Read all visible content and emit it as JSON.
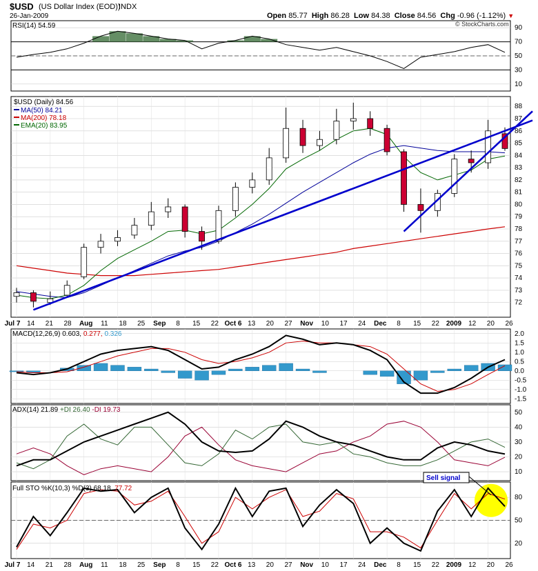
{
  "header": {
    "symbol": "$USD",
    "name": "(US Dollar Index (EOD))",
    "exchange": "INDX",
    "date": "26-Jan-2009",
    "open_label": "Open",
    "open": "85.77",
    "high_label": "High",
    "high": "86.28",
    "low_label": "Low",
    "low": "84.38",
    "close_label": "Close",
    "close": "84.56",
    "chg_label": "Chg",
    "chg": "-0.96 (-1.12%)",
    "watermark": "© StockCharts.com"
  },
  "colors": {
    "up": "#ffffff",
    "down": "#cc0033",
    "trend": "#0000cc",
    "ma50": "#000099",
    "ma200": "#cc0000",
    "ema20": "#006600",
    "macd_hist": "#3399cc",
    "rsi_fill": "#4a7a4a",
    "rsi_fill_low": "#7a4a4a",
    "grid": "#cccccc",
    "highlight": "#ffff00"
  },
  "chart_data": {
    "type": "candlestick",
    "dates": [
      "Jul 7",
      "Jul 14",
      "Jul 21",
      "Jul 28",
      "Aug 4",
      "Aug 11",
      "Aug 18",
      "Aug 25",
      "Sep 1",
      "Sep 8",
      "Sep 15",
      "Sep 22",
      "Sep 29",
      "Oct 6",
      "Oct 13",
      "Oct 20",
      "Oct 27",
      "Nov 3",
      "Nov 10",
      "Nov 17",
      "Nov 24",
      "Dec 1",
      "Dec 8",
      "Dec 15",
      "Dec 22",
      "Dec 29",
      "Jan 5",
      "Jan 12",
      "Jan 20",
      "Jan 26"
    ],
    "xaxis": {
      "ticks": [
        "Jul 7",
        "14",
        "21",
        "28",
        "Aug",
        "11",
        "18",
        "25",
        "Sep",
        "8",
        "15",
        "22",
        "Oct 6",
        "13",
        "20",
        "27",
        "Nov",
        "10",
        "17",
        "24",
        "Dec",
        "8",
        "15",
        "22",
        "2009",
        "12",
        "20",
        "26"
      ],
      "bold": [
        "Jul 7",
        "Aug",
        "Sep",
        "Oct 6",
        "Nov",
        "Dec",
        "2009"
      ]
    },
    "rsi": {
      "title": "RSI(14) 54.59",
      "ylim": [
        0,
        100
      ],
      "ticks": [
        "90",
        "70",
        "50",
        "30",
        "10"
      ],
      "tick_values": [
        90,
        70,
        50,
        30,
        10
      ],
      "values": [
        48,
        52,
        55,
        60,
        68,
        78,
        85,
        82,
        78,
        74,
        72,
        60,
        68,
        72,
        78,
        74,
        66,
        62,
        58,
        62,
        56,
        50,
        42,
        32,
        48,
        52,
        56,
        62,
        66,
        55
      ]
    },
    "price": {
      "title": "$USD (Daily) 84.56",
      "legend": [
        "MA(50) 84.21",
        "MA(200) 78.18",
        "EMA(20) 83.95"
      ],
      "ylim": [
        70.8,
        88.8
      ],
      "ticks": [
        "88",
        "87",
        "86",
        "85",
        "84",
        "83",
        "82",
        "81",
        "80",
        "79",
        "78",
        "77",
        "76",
        "75",
        "74",
        "73",
        "72"
      ],
      "tick_values": [
        88,
        87,
        86,
        85,
        84,
        83,
        82,
        81,
        80,
        79,
        78,
        77,
        76,
        75,
        74,
        73,
        72
      ],
      "close": [
        72.8,
        72.1,
        72.3,
        73.4,
        76.5,
        77.0,
        77.3,
        78.3,
        79.4,
        79.8,
        77.8,
        77.0,
        79.5,
        81.4,
        82.0,
        83.8,
        86.2,
        84.8,
        85.3,
        86.8,
        87.0,
        86.2,
        84.3,
        80.0,
        79.5,
        80.9,
        83.7,
        83.4,
        86.0,
        84.56
      ],
      "open": [
        72.5,
        72.8,
        72.0,
        72.6,
        74.1,
        76.5,
        77.0,
        77.5,
        78.3,
        79.4,
        79.8,
        77.8,
        77.0,
        79.5,
        81.4,
        82.0,
        83.8,
        86.2,
        84.8,
        85.3,
        86.8,
        87.0,
        86.2,
        84.3,
        80.0,
        79.5,
        80.9,
        83.7,
        83.4,
        85.77
      ],
      "high": [
        73.2,
        73.0,
        72.9,
        73.8,
        76.8,
        77.6,
        77.9,
        78.9,
        80.2,
        80.5,
        80.0,
        78.2,
        79.9,
        81.8,
        82.6,
        84.6,
        87.9,
        86.9,
        86.0,
        87.8,
        88.3,
        87.6,
        86.5,
        84.5,
        81.3,
        81.2,
        84.1,
        84.4,
        86.9,
        86.28
      ],
      "low": [
        72.0,
        71.6,
        71.8,
        72.4,
        73.9,
        76.0,
        76.6,
        77.2,
        77.9,
        78.9,
        77.3,
        76.3,
        76.8,
        79.0,
        80.9,
        81.6,
        83.4,
        84.2,
        84.4,
        84.9,
        86.1,
        85.6,
        84.0,
        79.4,
        77.7,
        79.0,
        80.6,
        82.6,
        82.9,
        84.38
      ],
      "ma50": [
        72.9,
        72.7,
        72.5,
        72.4,
        72.8,
        73.4,
        74.0,
        74.6,
        75.2,
        75.8,
        76.2,
        76.5,
        77.0,
        77.7,
        78.4,
        79.2,
        80.1,
        81.0,
        81.8,
        82.6,
        83.4,
        84.1,
        84.6,
        84.8,
        84.6,
        84.4,
        84.3,
        84.3,
        84.3,
        84.21
      ],
      "ma200": [
        75.0,
        74.8,
        74.6,
        74.4,
        74.3,
        74.2,
        74.2,
        74.2,
        74.3,
        74.4,
        74.5,
        74.6,
        74.7,
        74.9,
        75.1,
        75.3,
        75.5,
        75.7,
        75.9,
        76.1,
        76.4,
        76.6,
        76.8,
        77.0,
        77.2,
        77.4,
        77.6,
        77.8,
        78.0,
        78.18
      ],
      "ema20": [
        72.6,
        72.4,
        72.3,
        72.6,
        73.4,
        74.6,
        75.6,
        76.3,
        77.0,
        77.8,
        77.9,
        77.6,
        77.9,
        78.9,
        80.0,
        81.3,
        82.9,
        83.7,
        84.4,
        85.3,
        86.0,
        86.2,
        85.7,
        83.9,
        82.6,
        82.0,
        82.4,
        82.8,
        83.7,
        83.95
      ],
      "trendlines": [
        {
          "from": [
            "Jul 14",
            71.4
          ],
          "to": [
            "Jan 26",
            86.0
          ]
        },
        {
          "from": [
            "Dec 15",
            77.8
          ],
          "to": [
            "Jan 26",
            85.5
          ]
        }
      ]
    },
    "macd": {
      "title": "MACD(12,26,9) 0.603, 0.277, 0.326",
      "title_parts": [
        "MACD(12,26,9)",
        "0.603",
        "0.277",
        "0.326"
      ],
      "ylim": [
        -1.75,
        2.25
      ],
      "ticks": [
        "2.0",
        "1.5",
        "1.0",
        "0.5",
        "0.0",
        "-0.5",
        "-1.0",
        "-1.5"
      ],
      "tick_values": [
        2.0,
        1.5,
        1.0,
        0.5,
        0.0,
        -0.5,
        -1.0,
        -1.5
      ],
      "macd": [
        -0.1,
        -0.2,
        -0.1,
        0.1,
        0.5,
        0.9,
        1.1,
        1.2,
        1.3,
        1.1,
        0.6,
        0.1,
        0.2,
        0.6,
        0.9,
        1.3,
        1.9,
        1.7,
        1.4,
        1.5,
        1.4,
        1.1,
        0.6,
        -0.6,
        -1.2,
        -1.2,
        -0.9,
        -0.4,
        0.2,
        0.603
      ],
      "signal": [
        -0.05,
        -0.1,
        -0.1,
        -0.05,
        0.2,
        0.5,
        0.8,
        1.0,
        1.2,
        1.2,
        1.0,
        0.6,
        0.4,
        0.5,
        0.7,
        1.0,
        1.5,
        1.6,
        1.5,
        1.5,
        1.4,
        1.3,
        0.9,
        0.1,
        -0.7,
        -1.1,
        -1.0,
        -0.7,
        -0.2,
        0.277
      ],
      "hist": [
        -0.05,
        -0.1,
        0.0,
        0.15,
        0.3,
        0.4,
        0.3,
        0.2,
        0.1,
        -0.1,
        -0.4,
        -0.5,
        -0.2,
        0.1,
        0.2,
        0.3,
        0.4,
        0.1,
        -0.1,
        0.0,
        0.0,
        -0.2,
        -0.3,
        -0.7,
        -0.5,
        -0.1,
        0.1,
        0.3,
        0.4,
        0.326
      ]
    },
    "adx": {
      "title_parts": [
        "ADX(14) 21.89",
        "+DI 26.40",
        "-DI 19.73"
      ],
      "ylim": [
        4,
        55
      ],
      "ticks": [
        "50",
        "40",
        "30",
        "20",
        "10"
      ],
      "tick_values": [
        50,
        40,
        30,
        20,
        10
      ],
      "adx": [
        14,
        18,
        18,
        24,
        30,
        34,
        38,
        42,
        46,
        50,
        42,
        30,
        24,
        23,
        24,
        32,
        44,
        40,
        34,
        30,
        28,
        24,
        20,
        18,
        18,
        26,
        30,
        28,
        24,
        21.89
      ],
      "plus_di": [
        16,
        12,
        18,
        34,
        42,
        32,
        28,
        40,
        40,
        28,
        16,
        14,
        22,
        38,
        32,
        40,
        42,
        30,
        28,
        30,
        22,
        20,
        16,
        14,
        14,
        18,
        24,
        30,
        32,
        26.4
      ],
      "minus_di": [
        22,
        26,
        22,
        14,
        8,
        12,
        14,
        12,
        10,
        20,
        34,
        40,
        28,
        18,
        14,
        12,
        10,
        16,
        22,
        24,
        30,
        34,
        42,
        44,
        40,
        30,
        18,
        16,
        14,
        19.73
      ]
    },
    "sto": {
      "title": "Full STO %K(10,3) %D(3) 68.18, 77.72",
      "title_parts": [
        "Full STO %K(10,3) %D(3)",
        "68.18",
        "77.72"
      ],
      "ylim": [
        0,
        100
      ],
      "ticks": [
        "80",
        "50",
        "20"
      ],
      "tick_values": [
        80,
        50,
        20
      ],
      "k": [
        15,
        55,
        30,
        60,
        92,
        88,
        90,
        60,
        80,
        92,
        40,
        12,
        45,
        92,
        55,
        88,
        92,
        42,
        70,
        90,
        72,
        20,
        40,
        20,
        10,
        62,
        90,
        55,
        92,
        68.18
      ],
      "d": [
        12,
        45,
        40,
        50,
        85,
        90,
        88,
        70,
        75,
        88,
        55,
        20,
        35,
        80,
        65,
        80,
        90,
        55,
        62,
        85,
        78,
        35,
        35,
        28,
        14,
        50,
        85,
        65,
        85,
        77.72
      ],
      "annotation": "Sell signal"
    }
  }
}
